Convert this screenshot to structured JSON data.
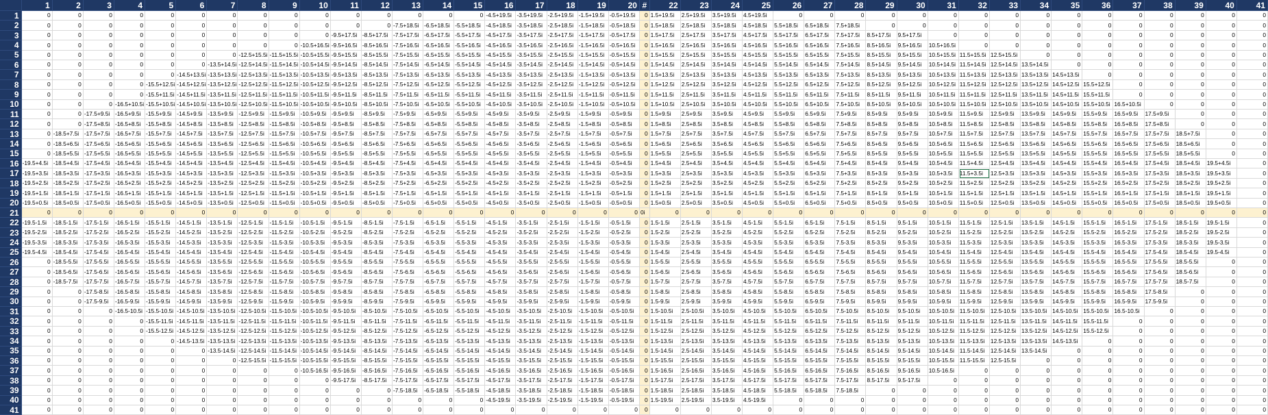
{
  "sheet": {
    "corner_label": "",
    "hash_label": "#",
    "column_labels": [
      "1",
      "2",
      "3",
      "4",
      "5",
      "6",
      "7",
      "8",
      "9",
      "10",
      "11",
      "12",
      "13",
      "14",
      "15",
      "16",
      "17",
      "18",
      "19",
      "20",
      "#",
      "22",
      "23",
      "24",
      "25",
      "26",
      "27",
      "28",
      "29",
      "30",
      "31",
      "32",
      "33",
      "34",
      "35",
      "36",
      "37",
      "38",
      "39",
      "40",
      "41"
    ],
    "row_labels": [
      "1",
      "2",
      "3",
      "4",
      "5",
      "6",
      "7",
      "8",
      "9",
      "10",
      "11",
      "12",
      "13",
      "14",
      "15",
      "16",
      "17",
      "18",
      "19",
      "20",
      "21",
      "22",
      "23",
      "24",
      "25",
      "26",
      "27",
      "28",
      "29",
      "30",
      "31",
      "32",
      "33",
      "34",
      "35",
      "36",
      "37",
      "38",
      "39",
      "40",
      "41"
    ],
    "highlight_column_index": 20,
    "highlight_row_index": 20,
    "selected_cell": {
      "row": 16,
      "col": 31
    },
    "colors": {
      "header_bg": "#1f3864",
      "header_text": "#ffffff",
      "highlight": "#fdf1d0",
      "grid": "#d9d9d9",
      "selection": "#1e7145"
    }
  }
}
